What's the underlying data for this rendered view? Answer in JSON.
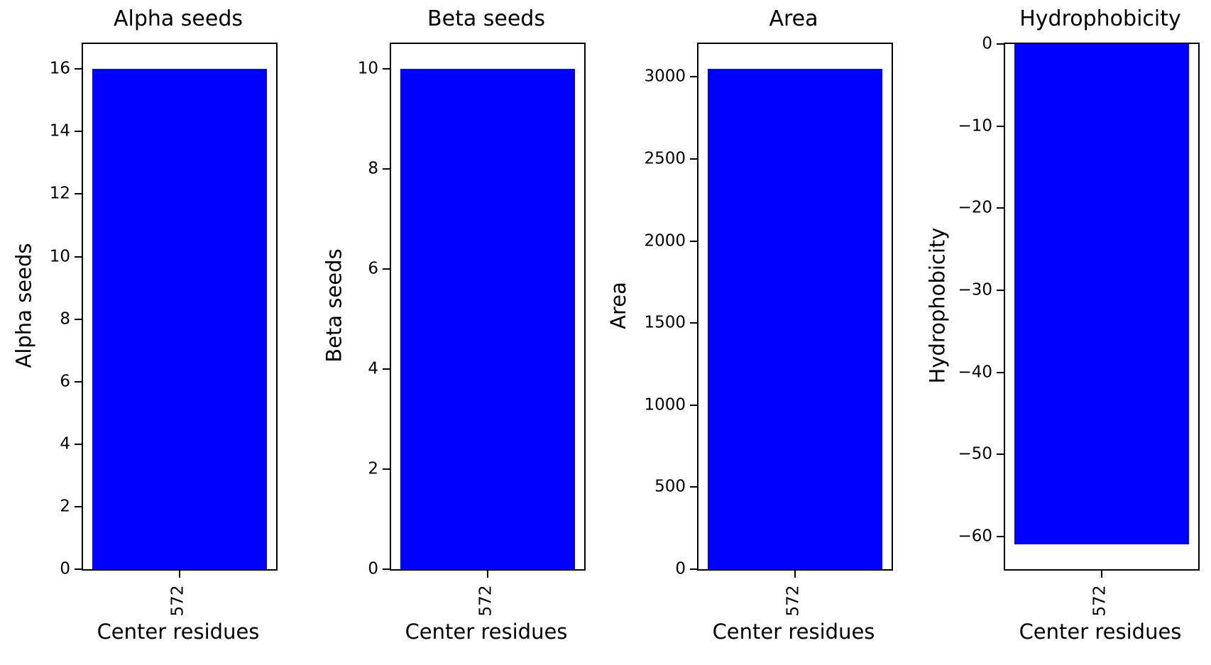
{
  "chart_data": [
    {
      "type": "bar",
      "title": "Alpha seeds",
      "xlabel": "Center residues",
      "ylabel": "Alpha seeds",
      "categories": [
        "572"
      ],
      "values": [
        16
      ],
      "ylim": [
        0,
        16.8
      ],
      "yticks": [
        0,
        2,
        4,
        6,
        8,
        10,
        12,
        14,
        16
      ],
      "bar_color": "#0000ff",
      "grid": false,
      "legend": false
    },
    {
      "type": "bar",
      "title": "Beta seeds",
      "xlabel": "Center residues",
      "ylabel": "Beta seeds",
      "categories": [
        "572"
      ],
      "values": [
        10
      ],
      "ylim": [
        0,
        10.5
      ],
      "yticks": [
        0,
        2,
        4,
        6,
        8,
        10
      ],
      "bar_color": "#0000ff",
      "grid": false,
      "legend": false
    },
    {
      "type": "bar",
      "title": "Area",
      "xlabel": "Center residues",
      "ylabel": "Area",
      "categories": [
        "572"
      ],
      "values": [
        3050
      ],
      "ylim": [
        0,
        3200
      ],
      "yticks": [
        0,
        500,
        1000,
        1500,
        2000,
        2500,
        3000
      ],
      "bar_color": "#0000ff",
      "grid": false,
      "legend": false
    },
    {
      "type": "bar",
      "title": "Hydrophobicity",
      "xlabel": "Center residues",
      "ylabel": "Hydrophobicity",
      "categories": [
        "572"
      ],
      "values": [
        -61
      ],
      "ylim": [
        -64,
        0
      ],
      "yticks": [
        0,
        -10,
        -20,
        -30,
        -40,
        -50,
        -60
      ],
      "bar_color": "#0000ff",
      "grid": false,
      "legend": false
    }
  ],
  "colors": {
    "bar": "#0000ff",
    "axes": "#000000",
    "text": "#000000",
    "background": "#ffffff"
  }
}
